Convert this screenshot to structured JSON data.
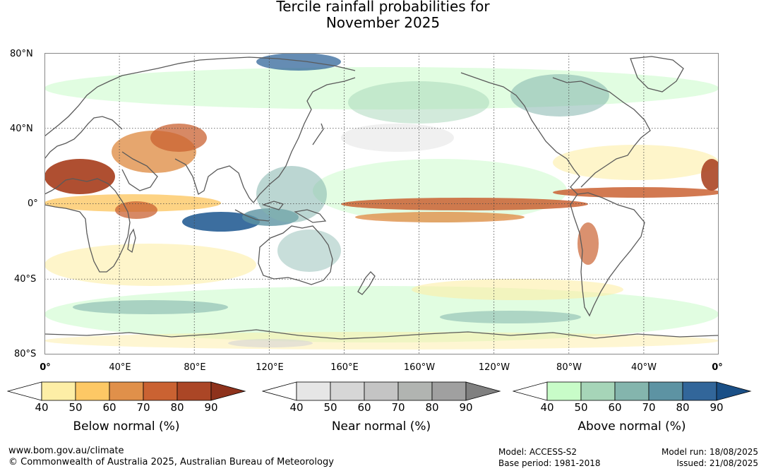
{
  "title": {
    "line1": "Tercile rainfall probabilities for",
    "line2": "November 2025"
  },
  "map": {
    "projection": "equirectangular",
    "lon_range": [
      0,
      360
    ],
    "lat_range": [
      -80,
      80
    ],
    "gridlines": "dotted every 40 degrees",
    "ylabels": [
      "80°N",
      "40°N",
      "0°",
      "40°S",
      "80°S"
    ],
    "xlabels": [
      "0°",
      "40°E",
      "80°E",
      "120°E",
      "160°E",
      "160°W",
      "120°W",
      "80°W",
      "40°W",
      "0°"
    ]
  },
  "colorbars": [
    {
      "title": "Below normal (%)",
      "ticks": [
        "40",
        "50",
        "60",
        "70",
        "80",
        "90"
      ],
      "colors": [
        "#ffffff",
        "#fdeea6",
        "#fdc865",
        "#e0904a",
        "#ca6232",
        "#ab4626",
        "#8e321c"
      ]
    },
    {
      "title": "Near normal (%)",
      "ticks": [
        "40",
        "50",
        "60",
        "70",
        "80",
        "90"
      ],
      "colors": [
        "#ffffff",
        "#e6e6e6",
        "#d6d6d6",
        "#c4c4c4",
        "#b1b4b1",
        "#a0a0a0",
        "#808080"
      ]
    },
    {
      "title": "Above normal (%)",
      "ticks": [
        "40",
        "50",
        "60",
        "70",
        "80",
        "90"
      ],
      "colors": [
        "#ffffff",
        "#c8fcc8",
        "#a6d5b8",
        "#84b5ad",
        "#5d93a3",
        "#32669a",
        "#1a4f86"
      ]
    }
  ],
  "footer": {
    "url": "www.bom.gov.au/climate",
    "copyright": "© Commonwealth of Australia 2025, Australian Bureau of Meteorology",
    "model": "Model: ACCESS-S2",
    "base_period": "Base period: 1981-2018",
    "model_run": "Model run: 18/08/2025",
    "issued": "Issued: 21/08/2025"
  }
}
